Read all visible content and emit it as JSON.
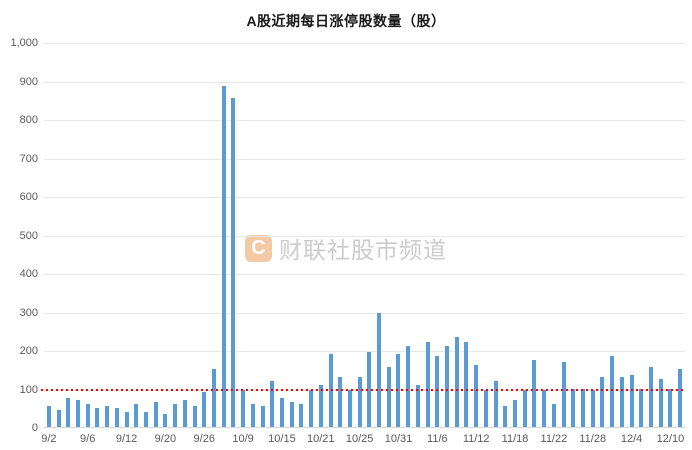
{
  "watermark": {
    "logo_letter": "C",
    "text": "财联社股市频道"
  },
  "chart_data": {
    "type": "bar",
    "title": "A股近期每日涨停股数量（股）",
    "xlabel": "",
    "ylabel": "",
    "ylim": [
      0,
      1000
    ],
    "grid": "horizontal",
    "legend": "none",
    "bar_color": "#5b9bd5",
    "axis_label_color": "#595959",
    "reference_line": {
      "value": 100,
      "color": "#fe0000",
      "style": "dotted"
    },
    "y_ticks": [
      0,
      100,
      200,
      300,
      400,
      500,
      600,
      700,
      800,
      900,
      1000
    ],
    "y_tick_labels": [
      "0",
      "100",
      "200",
      "300",
      "400",
      "500",
      "600",
      "700",
      "800",
      "900",
      "1,000"
    ],
    "categories": [
      "9/2",
      "9/3",
      "9/4",
      "9/5",
      "9/6",
      "9/9",
      "9/10",
      "9/11",
      "9/12",
      "9/13",
      "9/18",
      "9/19",
      "9/20",
      "9/23",
      "9/24",
      "9/25",
      "9/26",
      "9/27",
      "9/30",
      "10/8",
      "10/9",
      "10/10",
      "10/11",
      "10/14",
      "10/15",
      "10/16",
      "10/17",
      "10/18",
      "10/21",
      "10/22",
      "10/23",
      "10/24",
      "10/25",
      "10/28",
      "10/29",
      "10/30",
      "10/31",
      "11/1",
      "11/4",
      "11/5",
      "11/6",
      "11/7",
      "11/8",
      "11/11",
      "11/12",
      "11/13",
      "11/14",
      "11/15",
      "11/18",
      "11/19",
      "11/20",
      "11/21",
      "11/22",
      "11/25",
      "11/26",
      "11/27",
      "11/28",
      "11/29",
      "12/2",
      "12/3",
      "12/4",
      "12/5",
      "12/6",
      "12/9",
      "12/10",
      "12/11"
    ],
    "values": [
      55,
      45,
      75,
      70,
      60,
      50,
      55,
      50,
      40,
      60,
      40,
      65,
      35,
      60,
      70,
      55,
      90,
      150,
      885,
      855,
      95,
      60,
      55,
      120,
      75,
      65,
      60,
      95,
      110,
      190,
      130,
      95,
      130,
      195,
      295,
      155,
      190,
      210,
      110,
      220,
      185,
      210,
      235,
      220,
      160,
      95,
      120,
      55,
      70,
      95,
      175,
      95,
      60,
      170,
      100,
      100,
      95,
      130,
      185,
      130,
      135,
      100,
      155,
      125,
      100,
      150
    ],
    "x_tick_labels": [
      "9/2",
      "9/6",
      "9/12",
      "9/20",
      "9/26",
      "10/9",
      "10/15",
      "10/21",
      "10/25",
      "10/31",
      "11/6",
      "11/12",
      "11/18",
      "11/22",
      "11/28",
      "12/4",
      "12/10"
    ]
  }
}
